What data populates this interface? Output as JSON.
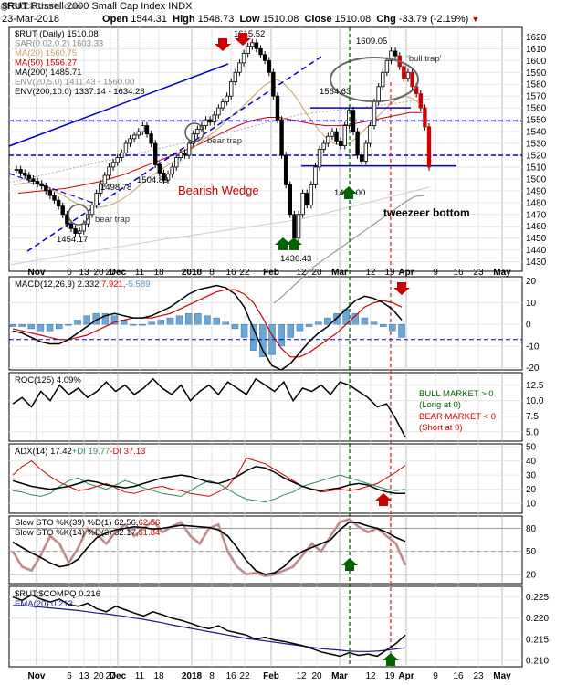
{
  "header": {
    "symbol": "$RUT",
    "title": "Russell 2000 Small Cap Index",
    "exchange": "INDX",
    "watermark": "@ StockCharts.com",
    "date": "23-Mar-2018",
    "open_label": "Open",
    "open": "1544.31",
    "high_label": "High",
    "high": "1548.73",
    "low_label": "Low",
    "low": "1510.08",
    "close_label": "Close",
    "close": "1510.08",
    "chg_label": "Chg",
    "chg": "-33.79 (-2.19%)"
  },
  "chart_data": [
    {
      "type": "candlestick",
      "title": "$RUT (Daily) 1510.08",
      "ylim": [
        1422,
        1628
      ],
      "yticks": [
        1430,
        1440,
        1450,
        1460,
        1470,
        1480,
        1490,
        1500,
        1510,
        1520,
        1530,
        1540,
        1550,
        1560,
        1570,
        1580,
        1590,
        1600,
        1610,
        1620
      ],
      "legend": [
        {
          "text": "$RUT (Daily) 1510.08",
          "color": "#000000"
        },
        {
          "text": "SAR(0.02,0.2) 1603.33",
          "color": "#888888"
        },
        {
          "text": "MA(20) 1560.75",
          "color": "#c8a060"
        },
        {
          "text": "MA(50) 1556.27",
          "color": "#cc0000"
        },
        {
          "text": "MA(200) 1485.71",
          "color": "#000000"
        },
        {
          "text": "ENV(20,5.0) 1411.43 - 1560.00",
          "color": "#888888"
        },
        {
          "text": "ENV(200,10.0) 1337.14 - 1634.28",
          "color": "#000000"
        }
      ],
      "closes": [
        1508,
        1505,
        1503,
        1500,
        1498,
        1496,
        1494,
        1490,
        1486,
        1482,
        1477,
        1470,
        1462,
        1458,
        1454,
        1456,
        1462,
        1470,
        1478,
        1488,
        1496,
        1503,
        1510,
        1514,
        1518,
        1522,
        1530,
        1534,
        1537,
        1540,
        1545,
        1538,
        1530,
        1512,
        1505,
        1499,
        1504,
        1510,
        1518,
        1522,
        1520,
        1530,
        1538,
        1542,
        1545,
        1550,
        1548,
        1554,
        1560,
        1565,
        1570,
        1582,
        1590,
        1598,
        1606,
        1612,
        1615,
        1610,
        1605,
        1600,
        1590,
        1570,
        1550,
        1520,
        1495,
        1470,
        1450,
        1470,
        1488,
        1478,
        1495,
        1510,
        1525,
        1530,
        1536,
        1540,
        1532,
        1528,
        1545,
        1558,
        1540,
        1520,
        1515,
        1530,
        1545,
        1565,
        1578,
        1590,
        1600,
        1608,
        1604,
        1595,
        1585,
        1590,
        1578,
        1572,
        1560,
        1544,
        1510
      ],
      "price_labels": [
        "1615.52",
        "1609.05",
        "1564.63",
        "1504.89",
        "1498.78",
        "1495.00",
        "1454.17",
        "1436.43"
      ],
      "annotations": [
        "'bull trap'",
        "bear trap",
        "bear trap",
        "Bearish Wedge",
        "tweezeer bottom"
      ],
      "ma20": [
        1495,
        1496,
        1497,
        1496,
        1494,
        1492,
        1489,
        1486,
        1482,
        1479,
        1478,
        1477,
        1476,
        1477,
        1479,
        1482,
        1486,
        1491,
        1496,
        1501,
        1505,
        1509,
        1513,
        1517,
        1521,
        1525,
        1530,
        1535,
        1539,
        1544,
        1550,
        1555,
        1560,
        1566,
        1572,
        1578,
        1582,
        1584,
        1580,
        1574,
        1566,
        1556,
        1548,
        1540,
        1534,
        1530,
        1528,
        1530,
        1534,
        1540,
        1546,
        1552,
        1558,
        1564,
        1568,
        1570,
        1568,
        1564,
        1560
      ],
      "ma50": [
        1488,
        1489,
        1490,
        1491,
        1492,
        1494,
        1496,
        1498,
        1501,
        1504,
        1508,
        1512,
        1516,
        1520,
        1524,
        1528,
        1533,
        1538,
        1543,
        1547,
        1550,
        1552,
        1552,
        1550,
        1548,
        1546,
        1545,
        1545,
        1546,
        1548,
        1550,
        1552,
        1554,
        1556,
        1556
      ],
      "ma200": [
        1395,
        1402,
        1410,
        1418,
        1426,
        1432,
        1438,
        1444,
        1450,
        1456,
        1462,
        1468,
        1474,
        1480,
        1485,
        1486
      ],
      "support_levels": [
        1549,
        1520
      ],
      "resistance_segments": [
        {
          "level": 1560
        },
        {
          "level": 1511
        }
      ]
    },
    {
      "type": "line",
      "title": "MACD(12,26,9) 2.332, 7.921, -5.589",
      "legend": [
        {
          "text": "MACD(12,26,9) 2.332, ",
          "color": "#000000"
        },
        {
          "text": "7.921, ",
          "color": "#cc0000"
        },
        {
          "text": "-5.589",
          "color": "#4a90c4"
        }
      ],
      "ylim": [
        -21,
        22
      ],
      "yticks": [
        20,
        10,
        0,
        -10,
        -20
      ],
      "series": [
        {
          "name": "MACD",
          "values": [
            -3,
            -4,
            -6,
            -8,
            -9,
            -9,
            -7,
            -4,
            -1,
            2,
            4,
            5,
            4,
            3,
            3,
            4,
            6,
            8,
            11,
            14,
            16,
            17,
            18,
            17,
            14,
            8,
            -2,
            -12,
            -19,
            -21,
            -18,
            -13,
            -8,
            -4,
            -1,
            3,
            7,
            11,
            13,
            12,
            10,
            7,
            2
          ]
        },
        {
          "name": "Signal",
          "values": [
            -2,
            -3,
            -4,
            -5,
            -6,
            -7,
            -7,
            -6,
            -5,
            -3,
            -1,
            1,
            2,
            3,
            3,
            3,
            4,
            5,
            7,
            9,
            11,
            13,
            15,
            16,
            16,
            14,
            10,
            3,
            -5,
            -11,
            -15,
            -15,
            -13,
            -10,
            -7,
            -4,
            0,
            4,
            8,
            10,
            11,
            10,
            8
          ]
        }
      ],
      "hist": [
        -1,
        -1,
        -2,
        -3,
        -3,
        -2,
        0,
        2,
        4,
        5,
        5,
        4,
        2,
        0,
        0,
        1,
        2,
        3,
        4,
        5,
        5,
        4,
        3,
        1,
        -2,
        -6,
        -12,
        -15,
        -14,
        -10,
        -6,
        -3,
        -1,
        1,
        3,
        5,
        7,
        5,
        3,
        1,
        -1,
        -3,
        -6
      ],
      "signal_line": -7
    },
    {
      "type": "line",
      "title": "ROC(125) 4.09%",
      "ylim": [
        3.5,
        14.5
      ],
      "yticks": [
        12.5,
        10.0,
        7.5,
        5.0
      ],
      "series": [
        {
          "name": "ROC",
          "values": [
            9.5,
            10.5,
            9.0,
            11.5,
            10.0,
            12.5,
            11.0,
            12.0,
            10.5,
            11.5,
            13.0,
            11.5,
            12.5,
            11.0,
            12.0,
            13.5,
            12.0,
            11.0,
            12.5,
            10.0,
            11.5,
            12.5,
            11.0,
            13.0,
            12.0,
            11.0,
            13.5,
            12.5,
            11.5,
            13.0,
            10.0,
            12.0,
            11.5,
            12.5,
            11.0,
            13.0,
            12.5,
            11.5,
            10.5,
            9.0,
            9.5,
            7.0,
            4.1
          ]
        }
      ],
      "notes": [
        "BULL MARKET > 0",
        "(Long at 0)",
        "BEAR MARKET < 0",
        "(Short at 0)"
      ]
    },
    {
      "type": "line",
      "title": "ADX(14) 17.42 +DI 19.77 -DI 37.13",
      "legend": [
        {
          "text": "ADX(14) 17.42 ",
          "color": "#000000"
        },
        {
          "text": "+DI 19.77 ",
          "color": "#2e8b57"
        },
        {
          "text": "-DI 37.13",
          "color": "#cc0000"
        }
      ],
      "ylim": [
        3,
        52
      ],
      "yticks": [
        50,
        40,
        30,
        20,
        10
      ],
      "series": [
        {
          "name": "ADX",
          "values": [
            26,
            24,
            22,
            21,
            20,
            21,
            22,
            24,
            26,
            25,
            23,
            22,
            21,
            22,
            24,
            26,
            28,
            29,
            30,
            29,
            27,
            25,
            24,
            26,
            29,
            33,
            36,
            35,
            32,
            28,
            25,
            22,
            20,
            19,
            20,
            21,
            23,
            24,
            23,
            20,
            18,
            17,
            17
          ]
        },
        {
          "name": "+DI",
          "values": [
            19,
            18,
            16,
            15,
            17,
            22,
            26,
            28,
            24,
            22,
            20,
            23,
            26,
            24,
            21,
            19,
            17,
            16,
            15,
            19,
            23,
            26,
            24,
            20,
            16,
            13,
            12,
            11,
            13,
            16,
            18,
            22,
            24,
            26,
            28,
            30,
            28,
            26,
            24,
            22,
            20,
            19,
            20
          ]
        },
        {
          "name": "-DI",
          "values": [
            30,
            36,
            40,
            34,
            29,
            25,
            22,
            19,
            20,
            22,
            24,
            21,
            18,
            17,
            19,
            21,
            22,
            20,
            19,
            17,
            16,
            15,
            18,
            22,
            30,
            42,
            40,
            38,
            34,
            30,
            26,
            22,
            20,
            18,
            19,
            20,
            19,
            20,
            22,
            24,
            28,
            32,
            37
          ]
        }
      ]
    },
    {
      "type": "line",
      "title": "Slow STO %K(39) %D(1) 62.56, 62.56",
      "legend": [
        {
          "text": "Slow STO %K(39) %D(1) 62.56, ",
          "color": "#000000"
        },
        {
          "text": "62.56",
          "color": "#cc0000"
        },
        {
          "text": "Slow STO %K(14) %D(3) 32.17, ",
          "color": "#000000"
        },
        {
          "text": "51.84",
          "color": "#cc0000"
        }
      ],
      "ylim": [
        8,
        96
      ],
      "yticks": [
        80,
        50,
        20
      ],
      "series": [
        {
          "name": "STO39",
          "values": [
            62,
            55,
            48,
            42,
            35,
            30,
            32,
            40,
            55,
            68,
            74,
            78,
            80,
            82,
            81,
            79,
            80,
            82,
            84,
            83,
            82,
            81,
            78,
            70,
            55,
            38,
            25,
            20,
            22,
            30,
            42,
            50,
            55,
            60,
            65,
            78,
            88,
            87,
            83,
            80,
            75,
            68,
            63
          ]
        },
        {
          "name": "STO14",
          "values": [
            50,
            30,
            25,
            45,
            70,
            60,
            35,
            55,
            80,
            72,
            60,
            75,
            85,
            70,
            80,
            90,
            75,
            82,
            88,
            70,
            60,
            80,
            85,
            50,
            30,
            20,
            22,
            18,
            20,
            25,
            30,
            45,
            60,
            50,
            70,
            88,
            92,
            82,
            75,
            80,
            70,
            60,
            32
          ]
        }
      ]
    },
    {
      "type": "line",
      "title": "$RUT:$COMPQ 0.216",
      "legend": [
        {
          "text": "$RUT:$COMPQ 0.216",
          "color": "#000000"
        },
        {
          "text": "EMA(20) 0.213",
          "color": "#1a1a8c"
        }
      ],
      "ylim": [
        0.2085,
        0.2275
      ],
      "yticks": [
        0.225,
        0.22,
        0.215,
        0.21
      ],
      "series": [
        {
          "name": "Ratio",
          "values": [
            0.225,
            0.2242,
            0.2255,
            0.2245,
            0.2238,
            0.2245,
            0.2232,
            0.2228,
            0.2235,
            0.2222,
            0.2215,
            0.2228,
            0.222,
            0.2212,
            0.2205,
            0.2215,
            0.2208,
            0.22,
            0.2195,
            0.2188,
            0.218,
            0.2175,
            0.2182,
            0.217,
            0.2165,
            0.216,
            0.215,
            0.2155,
            0.2148,
            0.2145,
            0.214,
            0.2135,
            0.2128,
            0.212,
            0.2115,
            0.211,
            0.2118,
            0.2112,
            0.2115,
            0.211,
            0.2125,
            0.214,
            0.216
          ]
        },
        {
          "name": "EMA(20)",
          "values": [
            0.223,
            0.223,
            0.2228,
            0.2226,
            0.2224,
            0.2222,
            0.222,
            0.2218,
            0.2215,
            0.2212,
            0.221,
            0.2207,
            0.2204,
            0.22,
            0.2197,
            0.2193,
            0.2189,
            0.2184,
            0.218,
            0.2176,
            0.2172,
            0.2168,
            0.2164,
            0.216,
            0.2156,
            0.2152,
            0.2149,
            0.2146,
            0.2143,
            0.214,
            0.2137,
            0.2134,
            0.2131,
            0.2128,
            0.2126,
            0.2124,
            0.2122,
            0.2121,
            0.2121,
            0.2122,
            0.2124,
            0.2127,
            0.213
          ]
        }
      ]
    }
  ],
  "x_axis": {
    "labels": [
      "Nov",
      "6",
      "13",
      "20",
      "27",
      "Dec",
      "11",
      "18",
      "2018",
      "8",
      "16",
      "22",
      "Feb",
      "12",
      "20",
      "Mar",
      "12",
      "19",
      "Apr",
      "9",
      "16",
      "23",
      "May"
    ],
    "bold": [
      "Nov",
      "Dec",
      "2018",
      "Feb",
      "Mar",
      "Apr",
      "May"
    ]
  }
}
